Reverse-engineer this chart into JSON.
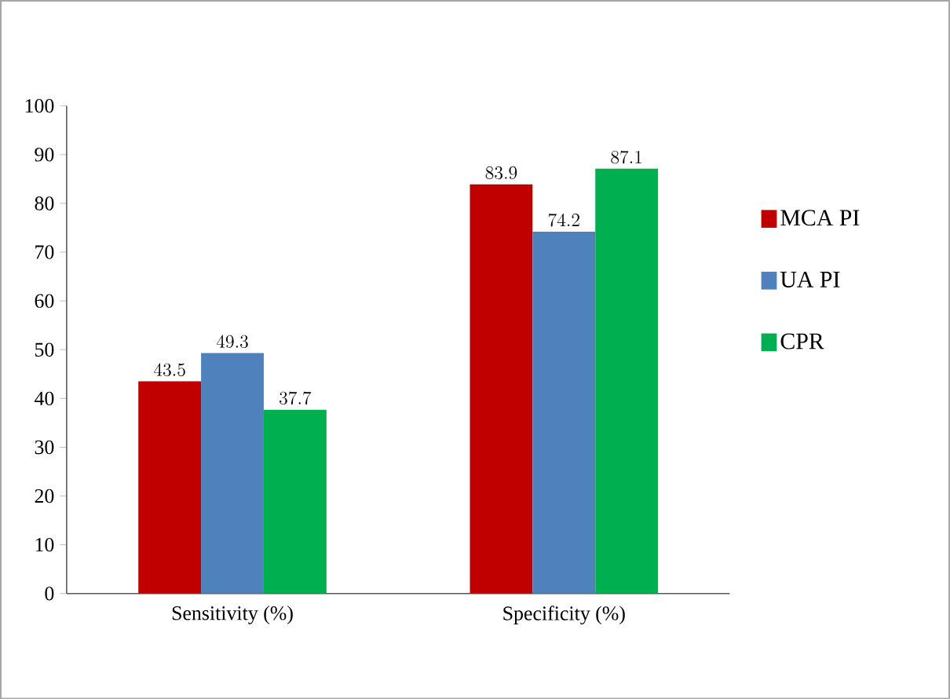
{
  "chart_data": {
    "type": "bar",
    "categories": [
      "Sensitivity (%)",
      "Specificity (%)"
    ],
    "series": [
      {
        "name": "MCA PI",
        "color": "#c00000",
        "values": [
          43.5,
          83.9
        ]
      },
      {
        "name": "UA PI",
        "color": "#4f81bd",
        "values": [
          49.3,
          74.2
        ]
      },
      {
        "name": "CPR",
        "color": "#00b050",
        "values": [
          37.7,
          87.1
        ]
      }
    ],
    "ylim": [
      0,
      100
    ],
    "yticks": [
      0,
      10,
      20,
      30,
      40,
      50,
      60,
      70,
      80,
      90,
      100
    ],
    "grid": false,
    "legend": "right",
    "data_labels": true
  }
}
